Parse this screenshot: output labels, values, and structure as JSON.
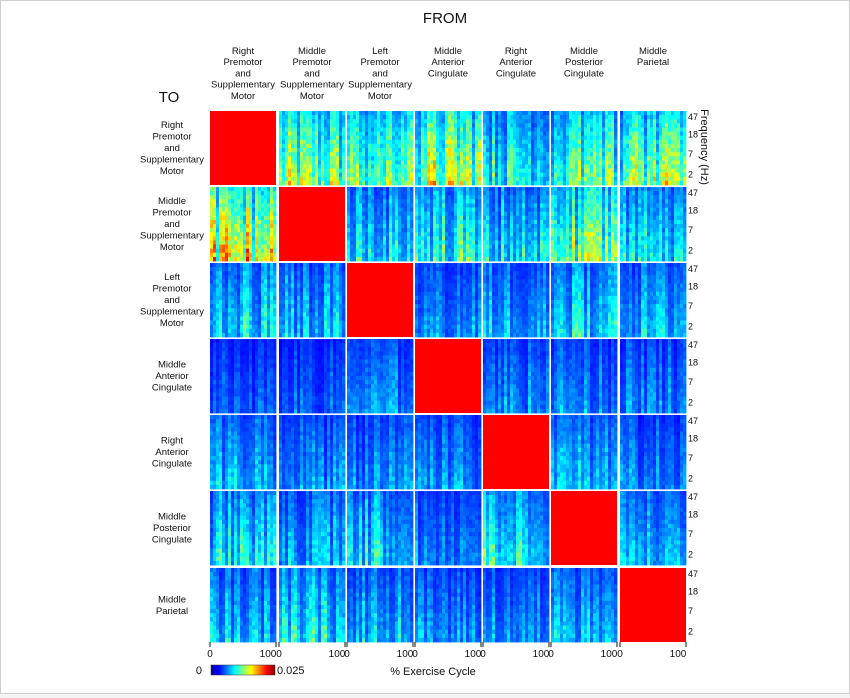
{
  "chart_data": {
    "type": "heatmap",
    "title": "FROM",
    "row_axis_title": "TO",
    "right_axis_label": "Frequency (Hz)",
    "x_axis_label": "% Exercise Cycle",
    "regions_from": [
      "Right Premotor and Supplementary Motor",
      "Middle Premotor and Supplementary Motor",
      "Left Premotor and Supplementary Motor",
      "Middle Anterior Cingulate",
      "Right Anterior Cingulate",
      "Middle Posterior Cingulate",
      "Middle Parietal"
    ],
    "regions_to": [
      "Right Premotor and Supplementary Motor",
      "Middle Premotor and Supplementary Motor",
      "Left Premotor and Supplementary Motor",
      "Middle Anterior Cingulate",
      "Right Anterior Cingulate",
      "Middle Posterior Cingulate",
      "Middle Parietal"
    ],
    "col_labels": [
      [
        "Right",
        "Premotor",
        "and",
        "Supplementary",
        "Motor"
      ],
      [
        "Middle",
        "Premotor",
        "and",
        "Supplementary",
        "Motor"
      ],
      [
        "Left",
        "Premotor",
        "and",
        "Supplementary",
        "Motor"
      ],
      [
        "Middle",
        "Anterior",
        "Cingulate"
      ],
      [
        "Right",
        "Anterior",
        "Cingulate"
      ],
      [
        "Middle",
        "Posterior",
        "Cingulate"
      ],
      [
        "Middle",
        "Parietal"
      ]
    ],
    "row_labels": [
      [
        "Right",
        "Premotor",
        "and",
        "Supplementary",
        "Motor"
      ],
      [
        "Middle",
        "Premotor",
        "and",
        "Supplementary",
        "Motor"
      ],
      [
        "Left",
        "Premotor",
        "and",
        "Supplementary",
        "Motor"
      ],
      [
        "Middle",
        "Anterior",
        "Cingulate"
      ],
      [
        "Right",
        "Anterior",
        "Cingulate"
      ],
      [
        "Middle",
        "Posterior",
        "Cingulate"
      ],
      [
        "Middle",
        "Parietal"
      ]
    ],
    "x_ticks": [
      "0",
      "100"
    ],
    "x_range": [
      0,
      100
    ],
    "freq_ticks": [
      "47",
      "18",
      "7",
      "2"
    ],
    "freq_range_hz": [
      2,
      47
    ],
    "colorbar": {
      "min": 0,
      "max": 0.025,
      "min_label": "0",
      "max_label": "0.025",
      "colormap": "jet"
    },
    "diagonal_value": 0.025,
    "mean_connectivity": [
      [
        0.025,
        0.009,
        0.008,
        0.01,
        0.007,
        0.008,
        0.009
      ],
      [
        0.011,
        0.025,
        0.006,
        0.007,
        0.006,
        0.009,
        0.006
      ],
      [
        0.006,
        0.005,
        0.025,
        0.004,
        0.005,
        0.006,
        0.005
      ],
      [
        0.003,
        0.003,
        0.004,
        0.025,
        0.004,
        0.004,
        0.004
      ],
      [
        0.005,
        0.004,
        0.004,
        0.004,
        0.025,
        0.005,
        0.004
      ],
      [
        0.006,
        0.005,
        0.006,
        0.004,
        0.007,
        0.025,
        0.005
      ],
      [
        0.005,
        0.006,
        0.005,
        0.004,
        0.004,
        0.005,
        0.025
      ]
    ]
  }
}
